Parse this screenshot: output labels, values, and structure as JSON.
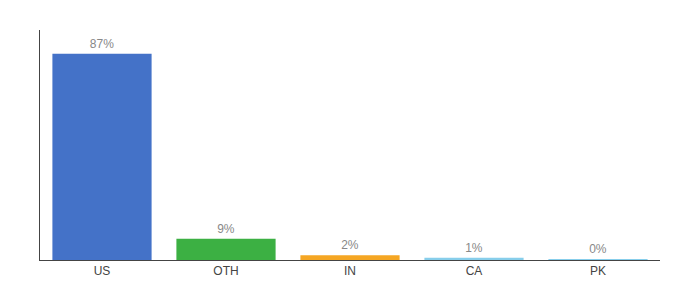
{
  "chart_data": {
    "type": "bar",
    "categories": [
      "US",
      "OTH",
      "IN",
      "CA",
      "PK"
    ],
    "values": [
      87,
      9,
      2,
      1,
      0.3
    ],
    "value_labels": [
      "87%",
      "9%",
      "2%",
      "1%",
      "0%"
    ],
    "colors": [
      "#4472c8",
      "#3cb043",
      "#f5a623",
      "#87ceeb",
      "#87ceeb"
    ],
    "ylim": [
      0,
      97
    ],
    "grid": false,
    "data_labels": true,
    "tick_labels": "x"
  }
}
